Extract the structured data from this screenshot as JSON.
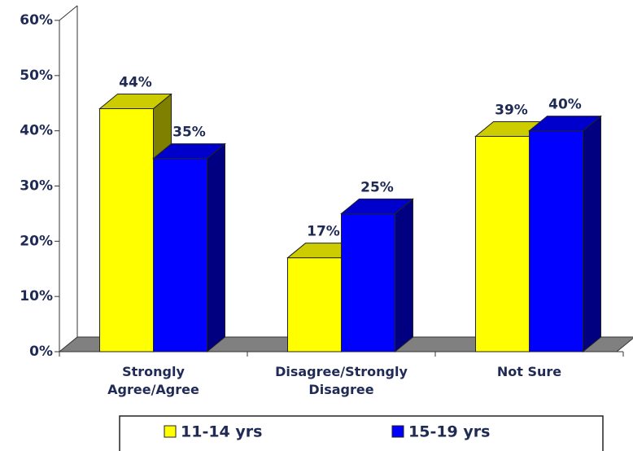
{
  "chart_data": {
    "type": "bar3d",
    "categories": [
      "Strongly Agree/Agree",
      "Disagree/Strongly Disagree",
      "Not Sure"
    ],
    "series": [
      {
        "name": "11-14 yrs",
        "color": "#ffff00",
        "values": [
          44,
          17,
          39
        ],
        "value_labels": [
          "44%",
          "17%",
          "39%"
        ]
      },
      {
        "name": "15-19 yrs",
        "color": "#0000ff",
        "values": [
          35,
          25,
          40
        ],
        "value_labels": [
          "35%",
          "25%",
          "40%"
        ]
      }
    ],
    "ylim": [
      0,
      60
    ],
    "yticks": [
      {
        "value": 0,
        "label": "0%"
      },
      {
        "value": 10,
        "label": "10%"
      },
      {
        "value": 20,
        "label": "20%"
      },
      {
        "value": 30,
        "label": "30%"
      },
      {
        "value": 40,
        "label": "40%"
      },
      {
        "value": 50,
        "label": "50%"
      },
      {
        "value": 60,
        "label": "60%"
      }
    ],
    "legend": "bottom"
  }
}
